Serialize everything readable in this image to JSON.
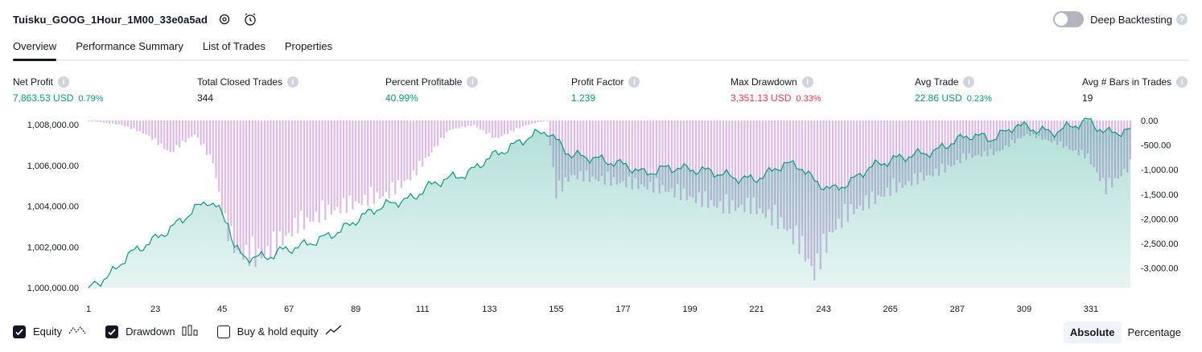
{
  "header": {
    "strategy_name": "Tuisku_GOOG_1Hour_1M00_33e0a5ad",
    "deep_backtesting_label": "Deep Backtesting",
    "deep_backtesting_enabled": false
  },
  "tabs": [
    {
      "label": "Overview",
      "active": true
    },
    {
      "label": "Performance Summary",
      "active": false
    },
    {
      "label": "List of Trades",
      "active": false
    },
    {
      "label": "Properties",
      "active": false
    }
  ],
  "metrics": [
    {
      "label": "Net Profit",
      "value": "7,863.53 USD",
      "pct": "0.79%",
      "color": "#089981"
    },
    {
      "label": "Total Closed Trades",
      "value": "344",
      "pct": "",
      "color": "#131722"
    },
    {
      "label": "Percent Profitable",
      "value": "40.99%",
      "pct": "",
      "color": "#089981"
    },
    {
      "label": "Profit Factor",
      "value": "1.239",
      "pct": "",
      "color": "#089981"
    },
    {
      "label": "Max Drawdown",
      "value": "3,351.13 USD",
      "pct": "0.33%",
      "color": "#f23645"
    },
    {
      "label": "Avg Trade",
      "value": "22.86 USD",
      "pct": "0.23%",
      "color": "#089981"
    },
    {
      "label": "Avg # Bars in Trades",
      "value": "19",
      "pct": "",
      "color": "#131722"
    }
  ],
  "legend": {
    "equity_label": "Equity",
    "equity_checked": true,
    "drawdown_label": "Drawdown",
    "drawdown_checked": true,
    "buyhold_label": "Buy & hold equity",
    "buyhold_checked": false
  },
  "mode": {
    "absolute_label": "Absolute",
    "percentage_label": "Percentage",
    "selected": "Absolute"
  },
  "chart_data": {
    "type": "area",
    "x_ticks": [
      "1",
      "23",
      "45",
      "67",
      "89",
      "111",
      "133",
      "155",
      "177",
      "199",
      "221",
      "243",
      "265",
      "287",
      "309",
      "331"
    ],
    "y_left_ticks": [
      "1,000,000.00",
      "1,002,000.00",
      "1,004,000.00",
      "1,006,000.00",
      "1,008,000.00"
    ],
    "y_right_ticks": [
      "0.00",
      "-500.00",
      "-1,000.00",
      "-1,500.00",
      "-2,000.00",
      "-2,500.00",
      "-3,000.00"
    ],
    "y_left_range": [
      1000000,
      1008200
    ],
    "y_right_range": [
      -3400,
      0
    ],
    "x_range": [
      1,
      344
    ],
    "series": [
      {
        "name": "Equity",
        "color": "#089981",
        "x": [
          1,
          8,
          14,
          22,
          28,
          34,
          40,
          44,
          47,
          49,
          52,
          56,
          60,
          64,
          70,
          76,
          84,
          90,
          96,
          102,
          108,
          112,
          118,
          126,
          132,
          140,
          146,
          152,
          155,
          160,
          166,
          172,
          178,
          184,
          192,
          200,
          206,
          214,
          220,
          226,
          230,
          236,
          240,
          246,
          252,
          258,
          266,
          272,
          280,
          286,
          292,
          298,
          304,
          306,
          312,
          318,
          324,
          330,
          336,
          344
        ],
        "y": [
          1000000,
          1000600,
          1001600,
          1002300,
          1002900,
          1003600,
          1004300,
          1003800,
          1003200,
          1002000,
          1001500,
          1001500,
          1001500,
          1001800,
          1002000,
          1002300,
          1002800,
          1003400,
          1003900,
          1004200,
          1004400,
          1004900,
          1005300,
          1005600,
          1006300,
          1006900,
          1007400,
          1007700,
          1007200,
          1006500,
          1006400,
          1006200,
          1006000,
          1005600,
          1005900,
          1005800,
          1005700,
          1005400,
          1005300,
          1005700,
          1006100,
          1005900,
          1005200,
          1004800,
          1005200,
          1005900,
          1006300,
          1006500,
          1006700,
          1007200,
          1007500,
          1007300,
          1007700,
          1008000,
          1007800,
          1007600,
          1007900,
          1008200,
          1007600,
          1007700
        ]
      },
      {
        "name": "Drawdown",
        "color": "#7e57c2",
        "x": [
          1,
          12,
          20,
          28,
          36,
          42,
          46,
          50,
          56,
          62,
          70,
          80,
          90,
          100,
          108,
          115,
          120,
          128,
          135,
          145,
          152,
          155,
          160,
          170,
          180,
          190,
          200,
          210,
          220,
          230,
          236,
          240,
          246,
          252,
          258,
          266,
          274,
          282,
          290,
          300,
          310,
          320,
          330,
          336,
          344
        ],
        "y": [
          0,
          -100,
          -300,
          -700,
          -300,
          -900,
          -2300,
          -2900,
          -3000,
          -2800,
          -2300,
          -2000,
          -1800,
          -1600,
          -1200,
          -600,
          -200,
          -100,
          -400,
          -100,
          0,
          -1600,
          -1200,
          -1300,
          -1400,
          -1500,
          -1700,
          -1900,
          -1900,
          -2300,
          -2800,
          -3351,
          -2400,
          -2000,
          -1800,
          -1500,
          -1300,
          -1100,
          -800,
          -700,
          -300,
          -500,
          -800,
          -1500,
          -1000
        ]
      }
    ]
  }
}
